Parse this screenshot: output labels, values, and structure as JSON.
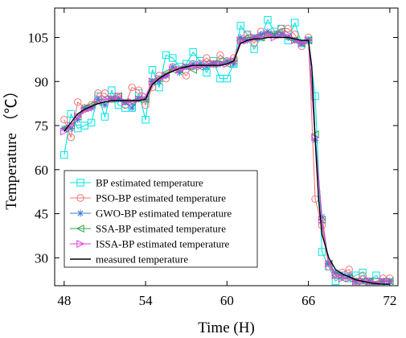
{
  "chart_data": {
    "type": "line",
    "xlabel": "Time (H)",
    "ylabel": "Temperature （℃）",
    "xlim": [
      47.3,
      72.6
    ],
    "ylim": [
      20.5,
      115
    ],
    "xticks": [
      48,
      54,
      60,
      66,
      72
    ],
    "yticks": [
      30,
      45,
      60,
      75,
      90,
      105
    ],
    "grid": false,
    "legend_position": "bottom-left",
    "series": [
      {
        "name": "BP estimated temperature",
        "color": "#00e5e5",
        "marker": "square",
        "x": [
          48,
          48.5,
          49,
          49.5,
          50,
          50.5,
          51,
          51.5,
          52,
          52.5,
          53,
          53.5,
          54,
          54.5,
          55,
          55.5,
          56,
          56.5,
          57,
          57.5,
          58,
          58.5,
          59,
          59.5,
          60,
          60.5,
          61,
          61.5,
          62,
          62.5,
          63,
          63.5,
          64,
          64.5,
          65,
          65.5,
          66,
          66.5,
          67,
          67.5,
          68,
          68.5,
          69,
          69.5,
          70,
          70.5,
          71,
          71.5,
          72
        ],
        "y": [
          65,
          79,
          74,
          75,
          76,
          85,
          78,
          87,
          82,
          81,
          81,
          86,
          77,
          94,
          88,
          99,
          98,
          95,
          96,
          100,
          97,
          93,
          97,
          91,
          91,
          96,
          109,
          106,
          101,
          105,
          111,
          107,
          108,
          104,
          110,
          103,
          104,
          85,
          32,
          27,
          22,
          24,
          23,
          24,
          25,
          22,
          24,
          21,
          20
        ]
      },
      {
        "name": "PSO-BP estimated temperature",
        "color": "#f07878",
        "marker": "circle",
        "x": [
          48,
          48.5,
          49,
          49.5,
          50,
          50.5,
          51,
          51.5,
          52,
          52.5,
          53,
          53.5,
          54,
          54.5,
          55,
          55.5,
          56,
          56.5,
          57,
          57.5,
          58,
          58.5,
          59,
          59.5,
          60,
          60.5,
          61,
          61.5,
          62,
          62.5,
          63,
          63.5,
          64,
          64.5,
          65,
          65.5,
          66,
          66.5,
          67,
          67.5,
          68,
          68.5,
          69,
          69.5,
          70,
          70.5,
          71,
          71.5,
          72
        ],
        "y": [
          77,
          71,
          83,
          81,
          82,
          86,
          86,
          84,
          85,
          82,
          88,
          87,
          82,
          88,
          92,
          91,
          95,
          94,
          92,
          96,
          96,
          98,
          96,
          99,
          97,
          98,
          104,
          106,
          103,
          107,
          106,
          106,
          108,
          108,
          106,
          102,
          105,
          50,
          41,
          27,
          24,
          25,
          26,
          22,
          24,
          22,
          22,
          23,
          23
        ]
      },
      {
        "name": "GWO-BP estimated temperature",
        "color": "#3c7ae0",
        "marker": "star",
        "x": [
          48,
          48.5,
          49,
          49.5,
          50,
          50.5,
          51,
          51.5,
          52,
          52.5,
          53,
          53.5,
          54,
          54.5,
          55,
          55.5,
          56,
          56.5,
          57,
          57.5,
          58,
          58.5,
          59,
          59.5,
          60,
          60.5,
          61,
          61.5,
          62,
          62.5,
          63,
          63.5,
          64,
          64.5,
          65,
          65.5,
          66,
          66.5,
          67,
          67.5,
          68,
          68.5,
          69,
          69.5,
          70,
          70.5,
          71,
          71.5,
          72
        ],
        "y": [
          74,
          74,
          77,
          81,
          81,
          84,
          82,
          84,
          84,
          83,
          81,
          84,
          84,
          90,
          90,
          92,
          95,
          93,
          95,
          96,
          96,
          95,
          96,
          96,
          97,
          96,
          105,
          104,
          105,
          106,
          107,
          106,
          106,
          105,
          104,
          103,
          104,
          70,
          44,
          28,
          25,
          24,
          24,
          22,
          22,
          22,
          21,
          22,
          22
        ]
      },
      {
        "name": "SSA-BP estimated temperature",
        "color": "#2ea84a",
        "marker": "triangle-left",
        "x": [
          48,
          48.5,
          49,
          49.5,
          50,
          50.5,
          51,
          51.5,
          52,
          52.5,
          53,
          53.5,
          54,
          54.5,
          55,
          55.5,
          56,
          56.5,
          57,
          57.5,
          58,
          58.5,
          59,
          59.5,
          60,
          60.5,
          61,
          61.5,
          62,
          62.5,
          63,
          63.5,
          64,
          64.5,
          65,
          65.5,
          66,
          66.5,
          67,
          67.5,
          68,
          68.5,
          69,
          69.5,
          70,
          70.5,
          71,
          71.5,
          72
        ],
        "y": [
          74,
          75,
          78,
          81,
          82,
          83,
          84,
          84,
          85,
          83,
          83,
          84,
          84,
          90,
          91,
          93,
          94,
          94,
          95,
          94,
          95,
          96,
          96,
          97,
          96,
          97,
          104,
          105,
          105,
          105,
          106,
          106,
          107,
          105,
          104,
          103,
          104,
          72,
          43,
          28,
          24,
          23,
          23,
          22,
          22,
          22,
          21,
          22,
          22
        ]
      },
      {
        "name": "ISSA-BP estimated temperature",
        "color": "#e040e0",
        "marker": "triangle-right",
        "x": [
          48,
          48.5,
          49,
          49.5,
          50,
          50.5,
          51,
          51.5,
          52,
          52.5,
          53,
          53.5,
          54,
          54.5,
          55,
          55.5,
          56,
          56.5,
          57,
          57.5,
          58,
          58.5,
          59,
          59.5,
          60,
          60.5,
          61,
          61.5,
          62,
          62.5,
          63,
          63.5,
          64,
          64.5,
          65,
          65.5,
          66,
          66.5,
          67,
          67.5,
          68,
          68.5,
          69,
          69.5,
          70,
          70.5,
          71,
          71.5,
          72
        ],
        "y": [
          73,
          75,
          78,
          80,
          81,
          83,
          84,
          84,
          85,
          83,
          83,
          84,
          85,
          90,
          91,
          92,
          94,
          94,
          95,
          95,
          95,
          96,
          96,
          96,
          96,
          97,
          104,
          104,
          105,
          105,
          106,
          105,
          106,
          106,
          104,
          103,
          104,
          71,
          43,
          28,
          24,
          23,
          23,
          22,
          22,
          22,
          21,
          22,
          22
        ]
      },
      {
        "name": "measured temperature",
        "color": "#000000",
        "marker": "none",
        "x": [
          48,
          48.5,
          49,
          49.5,
          50,
          50.5,
          51,
          51.5,
          52,
          52.5,
          53,
          53.5,
          54,
          54.5,
          55,
          55.5,
          56,
          56.5,
          57,
          57.5,
          58,
          58.5,
          59,
          59.5,
          60,
          60.5,
          61,
          61.5,
          62,
          62.5,
          63,
          63.5,
          64,
          64.5,
          65,
          65.5,
          66,
          66.25,
          66.5,
          66.75,
          67,
          67.5,
          68,
          68.5,
          69,
          69.5,
          70,
          70.5,
          71,
          71.5,
          72
        ],
        "y": [
          73,
          76,
          79,
          80.5,
          81.5,
          82.5,
          83,
          83.5,
          83.5,
          83.5,
          83.5,
          83.5,
          84,
          89,
          91,
          92.5,
          93.5,
          94.5,
          95,
          95.5,
          95.5,
          95.5,
          95.5,
          95.5,
          96,
          97,
          103,
          104,
          104.5,
          104.5,
          105,
          105,
          105,
          105,
          104.5,
          104,
          104,
          95,
          70,
          50,
          38,
          30,
          26,
          24.5,
          23.5,
          22.5,
          22,
          21.5,
          21.2,
          21,
          21
        ]
      }
    ]
  }
}
